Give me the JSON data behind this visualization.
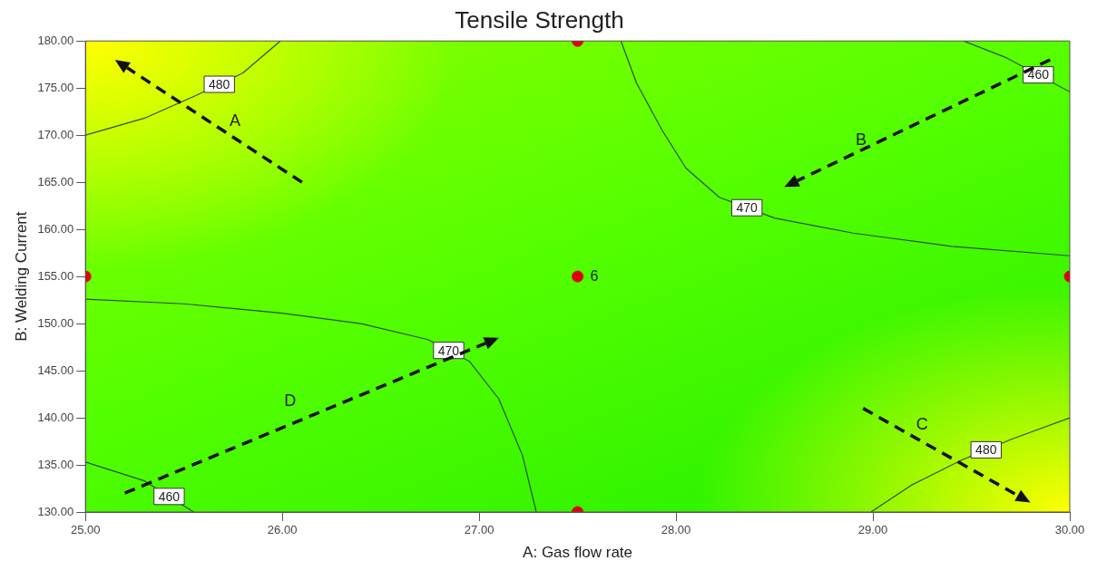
{
  "chart_data": {
    "type": "scatter",
    "title": "Tensile Strength",
    "xlabel": "A: Gas flow rate",
    "ylabel": "B: Welding Current",
    "xlim": [
      25,
      30
    ],
    "xticks": [
      {
        "value": 25,
        "label": "25.00"
      },
      {
        "value": 26,
        "label": "26.00"
      },
      {
        "value": 27,
        "label": "27.00"
      },
      {
        "value": 28,
        "label": "28.00"
      },
      {
        "value": 29,
        "label": "29.00"
      },
      {
        "value": 30,
        "label": "30.00"
      }
    ],
    "ylim": [
      130,
      180
    ],
    "yticks": [
      {
        "value": 130,
        "label": "130.00"
      },
      {
        "value": 135,
        "label": "135.00"
      },
      {
        "value": 140,
        "label": "140.00"
      },
      {
        "value": 145,
        "label": "145.00"
      },
      {
        "value": 150,
        "label": "150.00"
      },
      {
        "value": 155,
        "label": "155.00"
      },
      {
        "value": 160,
        "label": "160.00"
      },
      {
        "value": 165,
        "label": "165.00"
      },
      {
        "value": 170,
        "label": "170.00"
      },
      {
        "value": 175,
        "label": "175.00"
      },
      {
        "value": 180,
        "label": "180.00"
      }
    ],
    "grid": false,
    "legend": false,
    "series": [
      {
        "name": "480",
        "type": "line",
        "marker": "none",
        "color": "#2f4f2f",
        "x": [
          25,
          25.3,
          25.56,
          25.8,
          25.99
        ],
        "values": [
          170,
          171.8,
          174.2,
          176.6,
          180
        ]
      },
      {
        "name": "470",
        "type": "line",
        "marker": "none",
        "color": "#2f4f2f",
        "x": [
          27.72,
          27.8,
          27.93,
          28.05,
          28.22,
          28.5,
          28.9,
          29.4,
          30
        ],
        "values": [
          180,
          175.5,
          170.5,
          166.5,
          163.4,
          161.2,
          159.6,
          158.2,
          157.2
        ]
      },
      {
        "name": "460",
        "type": "line",
        "marker": "none",
        "color": "#2f4f2f",
        "x": [
          29.46,
          29.68,
          30
        ],
        "values": [
          180,
          178.2,
          174.6
        ]
      },
      {
        "name": "470",
        "type": "line",
        "marker": "none",
        "color": "#2f4f2f",
        "x": [
          25,
          25.5,
          26,
          26.4,
          26.74,
          26.95,
          27.1,
          27.22,
          27.29
        ],
        "values": [
          152.6,
          152.1,
          151.1,
          150,
          148.3,
          146,
          142,
          136,
          130
        ]
      },
      {
        "name": "460",
        "type": "line",
        "marker": "none",
        "color": "#2f4f2f",
        "x": [
          25,
          25.3,
          25.55
        ],
        "values": [
          135.3,
          133.3,
          130
        ]
      },
      {
        "name": "480",
        "type": "line",
        "marker": "none",
        "color": "#2f4f2f",
        "x": [
          28.99,
          29.2,
          29.45,
          29.7,
          30
        ],
        "values": [
          130,
          132.9,
          135.5,
          137.7,
          140
        ]
      },
      {
        "type": "scatter",
        "marker": "circle",
        "color": "#e00000",
        "x": [
          27.5,
          25,
          27.5,
          30,
          27.5
        ],
        "values": [
          180,
          155,
          155,
          155,
          130
        ]
      }
    ],
    "annotations": [
      "A",
      "B",
      "C",
      "D",
      {
        "text": "6",
        "x": 27.5,
        "y": 155
      }
    ]
  }
}
